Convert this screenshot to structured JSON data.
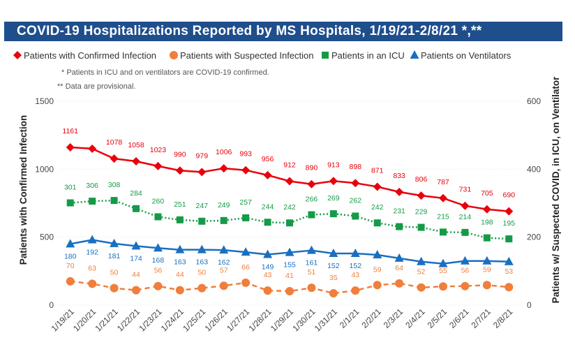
{
  "title": "COVID-19 Hospitalizations Reported by MS Hospitals, 1/19/21-2/8/21 *,**",
  "notes": [
    "* Patients in ICU and on ventilators are COVID-19 confirmed.",
    "** Data are provisional."
  ],
  "colors": {
    "title_bar": "#1f4e8c",
    "confirmed": "#e8000b",
    "suspected": "#f07e3c",
    "icu": "#159a48",
    "ventilators": "#1a6fc0"
  },
  "chart_data": {
    "type": "line",
    "x": [
      "1/19/21",
      "1/20/21",
      "1/21/21",
      "1/22/21",
      "1/23/21",
      "1/24/21",
      "1/25/21",
      "1/26/21",
      "1/27/21",
      "1/28/21",
      "1/29/21",
      "1/30/21",
      "1/31/21",
      "2/1/21",
      "2/2/21",
      "2/3/21",
      "2/4/21",
      "2/5/21",
      "2/6/21",
      "2/7/21",
      "2/8/21"
    ],
    "ylabel": "Patients with Confirmed Infection",
    "y2label": "Patients w/ Suspected COVID, in ICU, on Ventilator",
    "ylim": [
      0,
      1500
    ],
    "y2lim": [
      0,
      600
    ],
    "yticks": [
      0,
      500,
      1000,
      1500
    ],
    "y2ticks": [
      0,
      200,
      400,
      600
    ],
    "grid": true,
    "legend_position": "top",
    "series": [
      {
        "name": "Patients with Confirmed Infection",
        "axis": "left",
        "marker": "diamond",
        "style": "solid",
        "values": [
          1161,
          1151,
          1078,
          1058,
          1023,
          990,
          979,
          1006,
          993,
          956,
          912,
          890,
          913,
          898,
          871,
          833,
          806,
          787,
          731,
          705,
          690
        ],
        "labels": [
          "1161",
          "",
          "1078",
          "1058",
          "1023",
          "990",
          "979",
          "1006",
          "993",
          "956",
          "912",
          "890",
          "913",
          "898",
          "871",
          "833",
          "806",
          "787",
          "731",
          "705",
          "690"
        ]
      },
      {
        "name": "Patients with Suspected Infection",
        "axis": "right",
        "marker": "circle",
        "style": "dashed",
        "values": [
          70,
          63,
          50,
          44,
          56,
          44,
          50,
          57,
          66,
          43,
          41,
          51,
          35,
          43,
          59,
          64,
          52,
          55,
          56,
          59,
          53
        ],
        "labels": [
          "70",
          "63",
          "50",
          "44",
          "56",
          "44",
          "50",
          "57",
          "66",
          "43",
          "41",
          "51",
          "35",
          "43",
          "59",
          "64",
          "52",
          "55",
          "56",
          "59",
          "53"
        ]
      },
      {
        "name": "Patients in an ICU",
        "axis": "right",
        "marker": "square",
        "style": "dotted",
        "values": [
          301,
          306,
          308,
          284,
          260,
          251,
          247,
          249,
          257,
          244,
          242,
          266,
          269,
          262,
          242,
          231,
          229,
          215,
          214,
          198,
          195
        ],
        "labels": [
          "301",
          "306",
          "308",
          "284",
          "260",
          "251",
          "247",
          "249",
          "257",
          "244",
          "242",
          "266",
          "269",
          "262",
          "242",
          "231",
          "229",
          "215",
          "214",
          "198",
          "195"
        ]
      },
      {
        "name": "Patients on Ventilators",
        "axis": "right",
        "marker": "triangle",
        "style": "solid",
        "values": [
          180,
          192,
          181,
          174,
          168,
          163,
          163,
          162,
          156,
          149,
          155,
          161,
          152,
          152,
          148,
          138,
          128,
          122,
          130,
          130,
          128
        ],
        "labels": [
          "180",
          "192",
          "181",
          "174",
          "168",
          "163",
          "163",
          "162",
          "",
          "149",
          "155",
          "161",
          "152",
          "152",
          "",
          "",
          "",
          "",
          "",
          "",
          ""
        ]
      }
    ]
  }
}
